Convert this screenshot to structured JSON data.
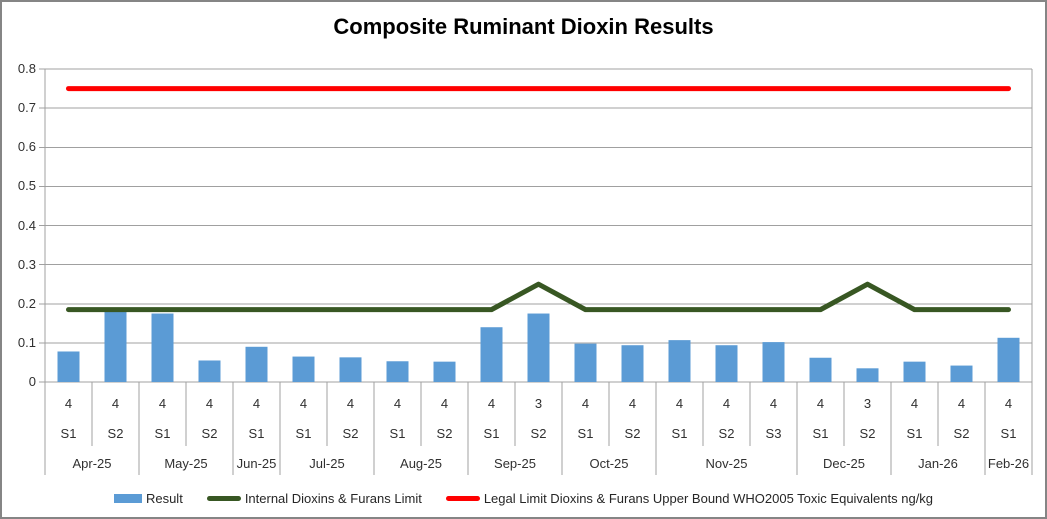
{
  "colors": {
    "bar": "#5B9BD5",
    "internal_limit": "#385723",
    "legal_limit": "#FF0000",
    "gridline": "#A0A0A0",
    "axis_text": "#303030",
    "title_text": "#000000",
    "border": "#858585"
  },
  "chart_data": {
    "type": "bar",
    "title": "Composite Ruminant Dioxin Results",
    "xlabel": "",
    "ylabel": "",
    "ylim": [
      0,
      0.8
    ],
    "ytick_labels": [
      "0",
      "0.1",
      "0.2",
      "0.3",
      "0.4",
      "0.5",
      "0.6",
      "0.7",
      "0.8"
    ],
    "grid": true,
    "legend_position": "bottom",
    "columns": [
      {
        "month": "Apr-25",
        "sample": "S1",
        "count": "4"
      },
      {
        "month": "Apr-25",
        "sample": "S2",
        "count": "4"
      },
      {
        "month": "May-25",
        "sample": "S1",
        "count": "4"
      },
      {
        "month": "May-25",
        "sample": "S2",
        "count": "4"
      },
      {
        "month": "Jun-25",
        "sample": "S1",
        "count": "4"
      },
      {
        "month": "Jul-25",
        "sample": "S1",
        "count": "4"
      },
      {
        "month": "Jul-25",
        "sample": "S2",
        "count": "4"
      },
      {
        "month": "Aug-25",
        "sample": "S1",
        "count": "4"
      },
      {
        "month": "Aug-25",
        "sample": "S2",
        "count": "4"
      },
      {
        "month": "Sep-25",
        "sample": "S1",
        "count": "4"
      },
      {
        "month": "Sep-25",
        "sample": "S2",
        "count": "3"
      },
      {
        "month": "Oct-25",
        "sample": "S1",
        "count": "4"
      },
      {
        "month": "Oct-25",
        "sample": "S2",
        "count": "4"
      },
      {
        "month": "Nov-25",
        "sample": "S1",
        "count": "4"
      },
      {
        "month": "Nov-25",
        "sample": "S2",
        "count": "4"
      },
      {
        "month": "Nov-25",
        "sample": "S3",
        "count": "4"
      },
      {
        "month": "Dec-25",
        "sample": "S1",
        "count": "4"
      },
      {
        "month": "Dec-25",
        "sample": "S2",
        "count": "3"
      },
      {
        "month": "Jan-26",
        "sample": "S1",
        "count": "4"
      },
      {
        "month": "Jan-26",
        "sample": "S2",
        "count": "4"
      },
      {
        "month": "Feb-26",
        "sample": "S1",
        "count": "4"
      }
    ],
    "series": [
      {
        "name": "Result",
        "type": "bar",
        "color": "#5B9BD5",
        "values": [
          0.078,
          0.18,
          0.175,
          0.055,
          0.09,
          0.065,
          0.063,
          0.053,
          0.052,
          0.14,
          0.175,
          0.098,
          0.094,
          0.107,
          0.094,
          0.102,
          0.062,
          0.035,
          0.052,
          0.042,
          0.113
        ]
      },
      {
        "name": "Internal Dioxins & Furans Limit",
        "type": "line",
        "color": "#385723",
        "values": [
          0.185,
          0.185,
          0.185,
          0.185,
          0.185,
          0.185,
          0.185,
          0.185,
          0.185,
          0.185,
          0.25,
          0.185,
          0.185,
          0.185,
          0.185,
          0.185,
          0.185,
          0.25,
          0.185,
          0.185,
          0.185
        ]
      },
      {
        "name": "Legal Limit Dioxins & Furans Upper Bound WHO2005 Toxic Equivalents ng/kg",
        "type": "line",
        "color": "#FF0000",
        "values": [
          0.75,
          0.75,
          0.75,
          0.75,
          0.75,
          0.75,
          0.75,
          0.75,
          0.75,
          0.75,
          0.75,
          0.75,
          0.75,
          0.75,
          0.75,
          0.75,
          0.75,
          0.75,
          0.75,
          0.75,
          0.75
        ]
      }
    ]
  }
}
